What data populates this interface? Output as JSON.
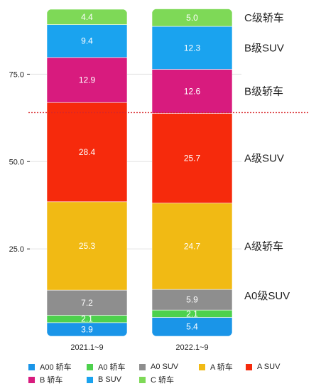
{
  "chart_data": {
    "type": "bar",
    "stacked": true,
    "categories": [
      "2021.1~9",
      "2022.1~9"
    ],
    "series": [
      {
        "name": "A00 轿车",
        "color": "#1a95e8",
        "values": [
          3.9,
          5.4
        ]
      },
      {
        "name": "A0 轿车",
        "color": "#4dd14d",
        "values": [
          2.1,
          2.1
        ]
      },
      {
        "name": "A0 SUV",
        "color": "#8e8e8e",
        "values": [
          7.2,
          5.9
        ]
      },
      {
        "name": "A 轿车",
        "color": "#f1ba14",
        "values": [
          25.3,
          24.7
        ]
      },
      {
        "name": "A SUV",
        "color": "#f62a0c",
        "values": [
          28.4,
          25.7
        ]
      },
      {
        "name": "B 轿车",
        "color": "#d81b7e",
        "values": [
          12.9,
          12.6
        ]
      },
      {
        "name": "B SUV",
        "color": "#1aa3ef",
        "values": [
          9.4,
          12.3
        ]
      },
      {
        "name": "C 轿车",
        "color": "#7ed957",
        "values": [
          4.4,
          5.0
        ]
      }
    ],
    "yticks": [
      "25.0",
      "50.0",
      "75.0"
    ],
    "ytick_values": [
      25,
      50,
      75
    ],
    "ylim": [
      0,
      93.6
    ],
    "reference_line": {
      "value": 64.0,
      "color": "#d7262a",
      "style": "dotted"
    },
    "grid": "horizontal",
    "segment_labels": [
      "C级轿车",
      "B级SUV",
      "B级轿车",
      "A级SUV",
      "A级轿车",
      "A0级SUV"
    ],
    "segment_label_series": [
      7,
      6,
      5,
      4,
      3,
      2
    ],
    "legend_position": "bottom"
  }
}
